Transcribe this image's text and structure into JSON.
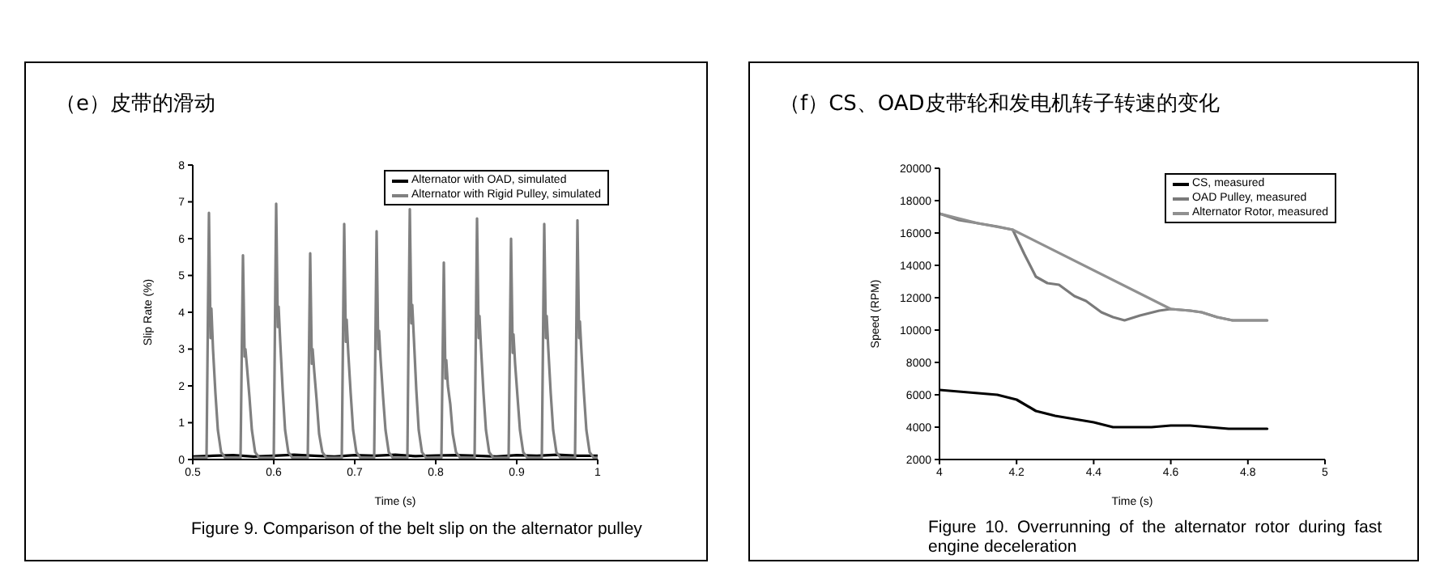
{
  "chart_data": [
    {
      "type": "line",
      "title": "（e）皮带的滑动",
      "xlabel": "Time (s)",
      "ylabel": "Slip Rate (%)",
      "xlim": [
        0.5,
        1
      ],
      "xticks": [
        {
          "value": 0.5,
          "label": "0.5"
        },
        {
          "value": 0.6,
          "label": "0.6"
        },
        {
          "value": 0.7,
          "label": "0.7"
        },
        {
          "value": 0.8,
          "label": "0.8"
        },
        {
          "value": 0.9,
          "label": "0.9"
        },
        {
          "value": 1,
          "label": "1"
        }
      ],
      "ylim": [
        0,
        8
      ],
      "yticks": [
        0,
        1,
        2,
        3,
        4,
        5,
        6,
        7,
        8
      ],
      "legend": "top right",
      "marker": "none",
      "line_style": "solid",
      "annotations": [
        "Figure 9. Comparison of the belt slip on the alternator pulley"
      ],
      "series": [
        {
          "name": "Alternator with OAD, simulated",
          "color": "#000000",
          "x": [
            0.5,
            0.525,
            0.55,
            0.575,
            0.6,
            0.625,
            0.65,
            0.675,
            0.7,
            0.725,
            0.75,
            0.775,
            0.8,
            0.825,
            0.85,
            0.875,
            0.9,
            0.925,
            0.95,
            0.975,
            1.0
          ],
          "values": [
            0.08,
            0.1,
            0.12,
            0.08,
            0.1,
            0.13,
            0.1,
            0.08,
            0.12,
            0.1,
            0.13,
            0.09,
            0.11,
            0.12,
            0.1,
            0.08,
            0.12,
            0.1,
            0.13,
            0.1,
            0.1
          ]
        },
        {
          "name": "Alternator with Rigid Pulley, simulated",
          "color": "#808080",
          "x": [
            0.5,
            0.517,
            0.519,
            0.52,
            0.522,
            0.523,
            0.525,
            0.528,
            0.531,
            0.535,
            0.54,
            0.559,
            0.561,
            0.562,
            0.564,
            0.565,
            0.567,
            0.57,
            0.573,
            0.577,
            0.582,
            0.6,
            0.602,
            0.603,
            0.605,
            0.606,
            0.608,
            0.611,
            0.614,
            0.618,
            0.623,
            0.642,
            0.644,
            0.645,
            0.647,
            0.648,
            0.65,
            0.653,
            0.656,
            0.66,
            0.665,
            0.684,
            0.686,
            0.687,
            0.689,
            0.69,
            0.692,
            0.695,
            0.698,
            0.702,
            0.707,
            0.724,
            0.726,
            0.727,
            0.729,
            0.73,
            0.732,
            0.735,
            0.738,
            0.742,
            0.747,
            0.765,
            0.767,
            0.768,
            0.77,
            0.771,
            0.773,
            0.776,
            0.779,
            0.783,
            0.788,
            0.807,
            0.809,
            0.81,
            0.812,
            0.813,
            0.815,
            0.818,
            0.821,
            0.825,
            0.83,
            0.848,
            0.85,
            0.851,
            0.853,
            0.854,
            0.856,
            0.859,
            0.862,
            0.866,
            0.871,
            0.89,
            0.892,
            0.893,
            0.895,
            0.896,
            0.898,
            0.901,
            0.904,
            0.908,
            0.913,
            0.931,
            0.933,
            0.934,
            0.936,
            0.937,
            0.939,
            0.942,
            0.945,
            0.949,
            0.954,
            0.972,
            0.974,
            0.975,
            0.977,
            0.978,
            0.98,
            0.983,
            0.986,
            0.99,
            0.995,
            1.0
          ],
          "values": [
            0.05,
            0.05,
            4.5,
            6.7,
            3.3,
            4.1,
            3.0,
            1.8,
            0.8,
            0.2,
            0.05,
            0.05,
            3.8,
            5.55,
            2.8,
            3.0,
            2.5,
            1.7,
            0.8,
            0.2,
            0.05,
            0.05,
            4.8,
            6.95,
            3.6,
            4.15,
            3.2,
            1.9,
            0.8,
            0.2,
            0.05,
            0.05,
            3.8,
            5.6,
            2.6,
            3.0,
            2.4,
            1.6,
            0.7,
            0.2,
            0.05,
            0.05,
            4.4,
            6.4,
            3.2,
            3.8,
            2.9,
            1.8,
            0.8,
            0.2,
            0.05,
            0.05,
            4.2,
            6.2,
            3.0,
            3.5,
            2.7,
            1.7,
            0.8,
            0.2,
            0.05,
            0.05,
            4.7,
            6.8,
            3.7,
            4.2,
            3.3,
            1.9,
            0.8,
            0.2,
            0.05,
            0.05,
            3.6,
            5.35,
            2.2,
            2.7,
            2.0,
            1.5,
            0.7,
            0.2,
            0.05,
            0.05,
            4.5,
            6.55,
            3.3,
            3.9,
            3.0,
            1.8,
            0.8,
            0.2,
            0.05,
            0.05,
            4.1,
            6.0,
            2.9,
            3.4,
            2.6,
            1.7,
            0.8,
            0.2,
            0.05,
            0.05,
            4.4,
            6.4,
            3.3,
            3.9,
            3.0,
            1.8,
            0.8,
            0.2,
            0.05,
            0.05,
            4.4,
            6.5,
            3.3,
            3.75,
            2.9,
            1.8,
            0.8,
            0.2,
            0.05,
            0.05
          ]
        }
      ]
    },
    {
      "type": "line",
      "title": "（f）CS、OAD皮带轮和发电机转子转速的变化",
      "xlabel": "Time (s)",
      "ylabel": "Speed (RPM)",
      "xlim": [
        4,
        5
      ],
      "xticks": [
        {
          "value": 4,
          "label": "4"
        },
        {
          "value": 4.2,
          "label": "4.2"
        },
        {
          "value": 4.4,
          "label": "4.4"
        },
        {
          "value": 4.6,
          "label": "4.6"
        },
        {
          "value": 4.8,
          "label": "4.8"
        },
        {
          "value": 5,
          "label": "5"
        }
      ],
      "ylim": [
        2000,
        20000
      ],
      "yticks": [
        2000,
        4000,
        6000,
        8000,
        10000,
        12000,
        14000,
        16000,
        18000,
        20000
      ],
      "legend": "top right",
      "marker": "none",
      "line_style": "solid",
      "annotations": [
        "Figure 10. Overrunning of the alternator rotor during fast engine deceleration"
      ],
      "series": [
        {
          "name": "CS, measured",
          "color": "#000000",
          "x": [
            4,
            4.05,
            4.1,
            4.15,
            4.2,
            4.25,
            4.3,
            4.35,
            4.4,
            4.45,
            4.5,
            4.55,
            4.6,
            4.65,
            4.7,
            4.75,
            4.8,
            4.85
          ],
          "values": [
            6300,
            6200,
            6100,
            6000,
            5700,
            5000,
            4700,
            4500,
            4300,
            4000,
            4000,
            4000,
            4100,
            4100,
            4000,
            3900,
            3900,
            3900
          ]
        },
        {
          "name": "OAD Pulley, measured",
          "color": "#7a7a7a",
          "x": [
            4,
            4.05,
            4.1,
            4.15,
            4.19,
            4.22,
            4.25,
            4.28,
            4.31,
            4.35,
            4.38,
            4.42,
            4.45,
            4.48,
            4.52,
            4.57,
            4.6,
            4.65,
            4.68,
            4.72,
            4.76,
            4.8,
            4.85
          ],
          "values": [
            17200,
            16800,
            16600,
            16400,
            16200,
            14700,
            13300,
            12900,
            12800,
            12100,
            11800,
            11100,
            10800,
            10600,
            10900,
            11200,
            11300,
            11200,
            11100,
            10800,
            10600,
            10600,
            10600
          ]
        },
        {
          "name": "Alternator Rotor, measured",
          "color": "#909090",
          "x": [
            4,
            4.1,
            4.19,
            4.6,
            4.65,
            4.68,
            4.72,
            4.76,
            4.8,
            4.85
          ],
          "values": [
            17200,
            16600,
            16200,
            11300,
            11200,
            11100,
            10800,
            10600,
            10600,
            10600
          ]
        }
      ]
    }
  ]
}
